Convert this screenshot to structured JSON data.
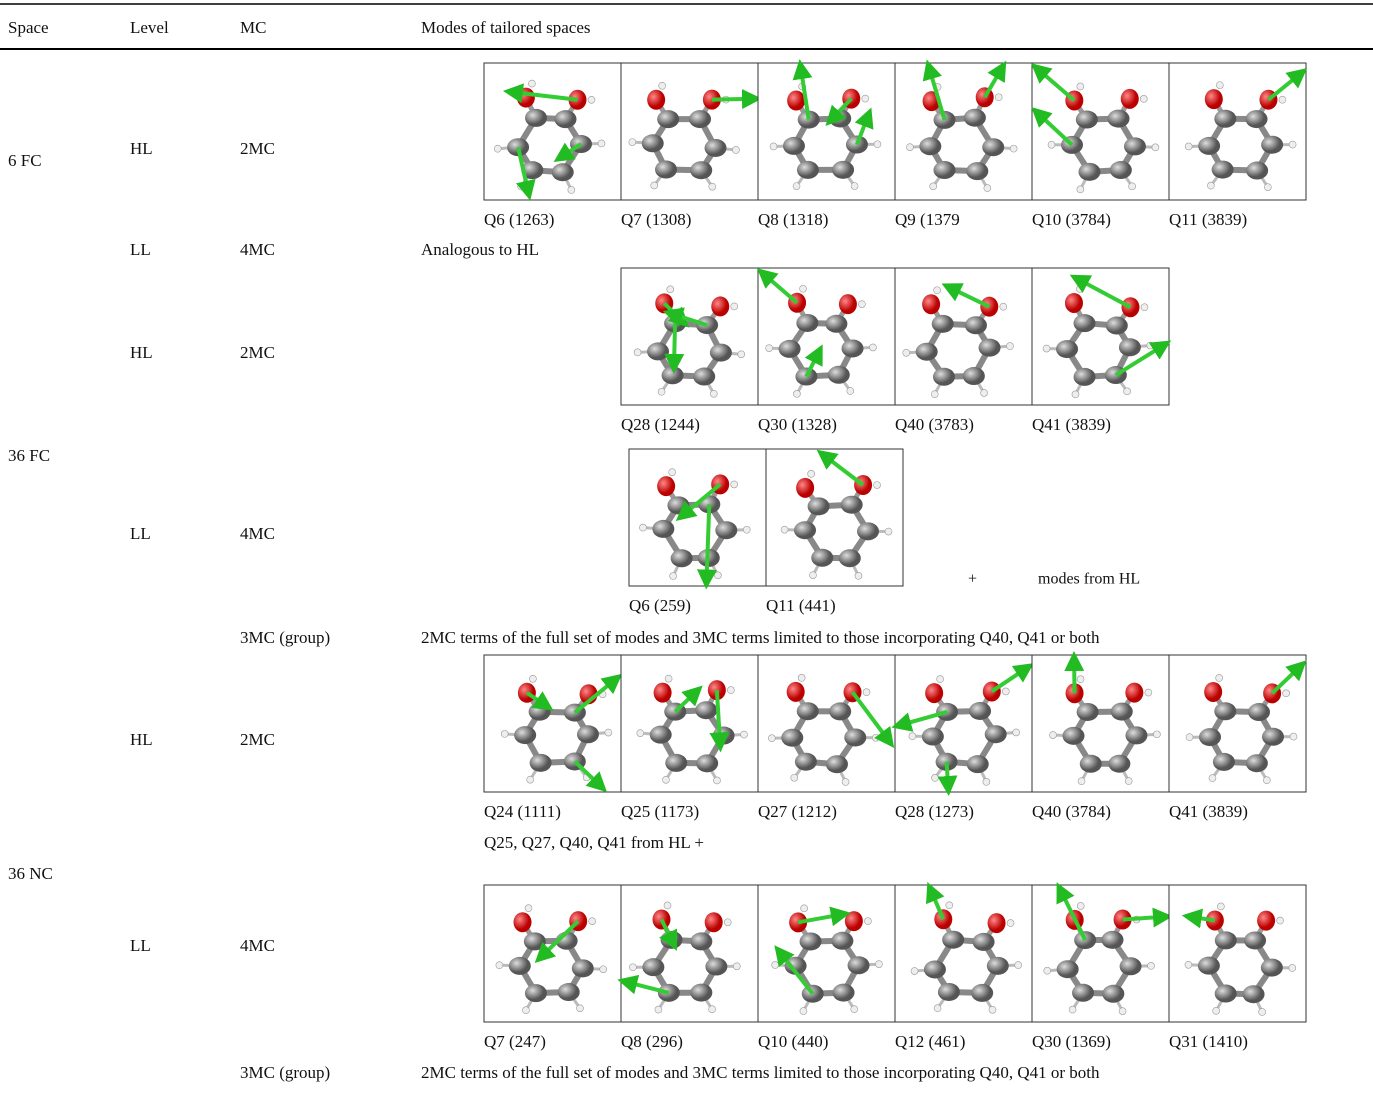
{
  "table": {
    "header": [
      "Space",
      "Level",
      "MC",
      "Modes of tailored spaces"
    ],
    "spaces": [
      "6 FC",
      "36 FC",
      "36 NC"
    ],
    "rows": [
      {
        "level": "HL",
        "mc": "2MC",
        "modes": [
          "Q6 (1263)",
          "Q7 (1308)",
          "Q8 (1318)",
          "Q9 (1379",
          "Q10 (3784)",
          "Q11 (3839)"
        ]
      },
      {
        "level": "LL",
        "mc": "4MC",
        "text": "Analogous to HL"
      },
      {
        "level": "HL",
        "mc": "2MC",
        "modes": [
          "Q28 (1244)",
          "Q30 (1328)",
          "Q40 (3783)",
          "Q41 (3839)"
        ]
      },
      {
        "level": "LL",
        "mc": "4MC",
        "modes": [
          "Q6 (259)",
          "Q11 (441)"
        ],
        "extra": [
          "+",
          "modes from HL"
        ]
      },
      {
        "mc": "3MC (group)",
        "text": "2MC terms of the full set of modes and 3MC terms limited to those incorporating Q40, Q41 or both"
      },
      {
        "level": "HL",
        "mc": "2MC",
        "modes": [
          "Q24 (1111)",
          "Q25 (1173)",
          "Q27 (1212)",
          "Q28 (1273)",
          "Q40 (3784)",
          "Q41 (3839)"
        ],
        "text": "Q25, Q27, Q40, Q41 from HL +"
      },
      {
        "level": "LL",
        "mc": "4MC",
        "modes": [
          "Q7 (247)",
          "Q8 (296)",
          "Q10 (440)",
          "Q12 (461)",
          "Q30 (1369)",
          "Q31 (1410)"
        ]
      },
      {
        "mc": "3MC (group)",
        "text": "2MC terms of the full set of modes and 3MC terms limited to those incorporating Q40, Q41 or both"
      }
    ]
  }
}
